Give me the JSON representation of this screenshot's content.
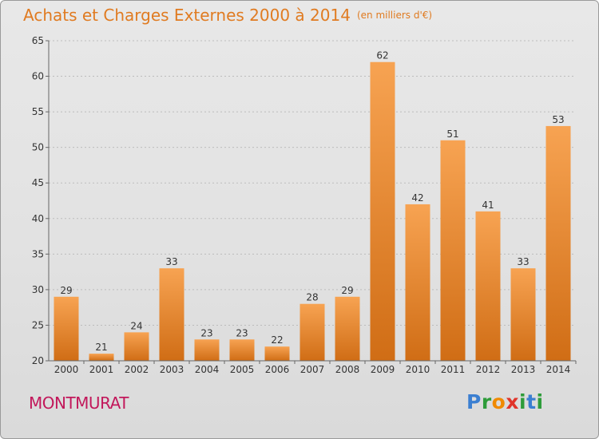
{
  "header": {
    "title": "Achats et Charges Externes 2000 à 2014",
    "unit": "(en milliers d'€)"
  },
  "commune": "MONTMURAT",
  "brand": {
    "name": "Proxiti",
    "letters": [
      {
        "char": "P",
        "color": "#3b7fd1"
      },
      {
        "char": "r",
        "color": "#2e9c3a"
      },
      {
        "char": "o",
        "color": "#f08a00"
      },
      {
        "char": "x",
        "color": "#e0342b"
      },
      {
        "char": "i",
        "color": "#2e9c3a"
      },
      {
        "char": "t",
        "color": "#3b7fd1"
      },
      {
        "char": "i",
        "color": "#2e9c3a"
      }
    ]
  },
  "chart_data": {
    "type": "bar",
    "title": "Achats et Charges Externes 2000 à 2014",
    "xlabel": "",
    "ylabel": "",
    "categories": [
      "2000",
      "2001",
      "2002",
      "2003",
      "2004",
      "2005",
      "2006",
      "2007",
      "2008",
      "2009",
      "2010",
      "2011",
      "2012",
      "2013",
      "2014"
    ],
    "values": [
      29,
      21,
      24,
      33,
      23,
      23,
      22,
      28,
      29,
      62,
      42,
      51,
      41,
      33,
      53
    ],
    "ylim": [
      20,
      65
    ],
    "yticks": [
      20,
      25,
      30,
      35,
      40,
      45,
      50,
      55,
      60,
      65
    ],
    "grid": true,
    "bar_color_top": "#f7a352",
    "bar_color_bottom": "#d06d15"
  }
}
